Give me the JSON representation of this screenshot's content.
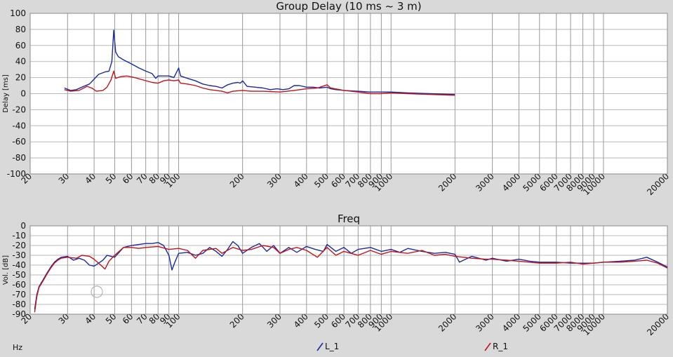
{
  "chart_data": [
    {
      "type": "line",
      "title": "Group Delay (10 ms ~ 3 m)",
      "ylabel": "Delay [ms]",
      "xscale": "log",
      "xlim": [
        20,
        20000
      ],
      "ylim": [
        -100,
        100
      ],
      "xticks": [
        20,
        30,
        40,
        50,
        60,
        70,
        80,
        90,
        100,
        200,
        300,
        400,
        500,
        600,
        700,
        800,
        900,
        1000,
        2000,
        3000,
        4000,
        5000,
        6000,
        7000,
        8000,
        9000,
        10000,
        20000
      ],
      "yticks": [
        100,
        80,
        60,
        40,
        20,
        0,
        -20,
        -40,
        -60,
        -80,
        -100
      ],
      "grid": true,
      "series": [
        {
          "name": "L_1",
          "color": "#1a2aa0",
          "points": [
            [
              29,
              7
            ],
            [
              31,
              4
            ],
            [
              33,
              5
            ],
            [
              35,
              8
            ],
            [
              38,
              12
            ],
            [
              40,
              18
            ],
            [
              42,
              24
            ],
            [
              45,
              27
            ],
            [
              47,
              28
            ],
            [
              48.5,
              40
            ],
            [
              49.5,
              79
            ],
            [
              50.5,
              52
            ],
            [
              52,
              46
            ],
            [
              55,
              42
            ],
            [
              60,
              37
            ],
            [
              65,
              32
            ],
            [
              70,
              28
            ],
            [
              75,
              25
            ],
            [
              78,
              19
            ],
            [
              80,
              22
            ],
            [
              85,
              22
            ],
            [
              90,
              22
            ],
            [
              95,
              20
            ],
            [
              100,
              32
            ],
            [
              102,
              22
            ],
            [
              110,
              19
            ],
            [
              120,
              16
            ],
            [
              130,
              12
            ],
            [
              140,
              10
            ],
            [
              150,
              9
            ],
            [
              160,
              7
            ],
            [
              170,
              11
            ],
            [
              180,
              13
            ],
            [
              190,
              14
            ],
            [
              195,
              13
            ],
            [
              200,
              16
            ],
            [
              210,
              9
            ],
            [
              230,
              8
            ],
            [
              250,
              7
            ],
            [
              270,
              5
            ],
            [
              290,
              6
            ],
            [
              310,
              5
            ],
            [
              330,
              6
            ],
            [
              350,
              10
            ],
            [
              370,
              10
            ],
            [
              400,
              8
            ],
            [
              430,
              8
            ],
            [
              460,
              7
            ],
            [
              500,
              8
            ],
            [
              520,
              6
            ],
            [
              550,
              5
            ],
            [
              600,
              4
            ],
            [
              700,
              3
            ],
            [
              800,
              2
            ],
            [
              900,
              2
            ],
            [
              1000,
              2
            ],
            [
              1200,
              1
            ],
            [
              1500,
              0
            ],
            [
              2000,
              -1
            ]
          ]
        },
        {
          "name": "R_1",
          "color": "#c0141a",
          "points": [
            [
              29,
              5
            ],
            [
              31,
              3
            ],
            [
              34,
              4
            ],
            [
              37,
              9
            ],
            [
              39,
              7
            ],
            [
              41,
              3
            ],
            [
              44,
              4
            ],
            [
              46,
              8
            ],
            [
              48,
              17
            ],
            [
              49.5,
              28
            ],
            [
              50.5,
              19
            ],
            [
              53,
              21
            ],
            [
              57,
              22
            ],
            [
              62,
              20
            ],
            [
              68,
              17
            ],
            [
              75,
              14
            ],
            [
              80,
              13
            ],
            [
              85,
              16
            ],
            [
              90,
              17
            ],
            [
              95,
              16
            ],
            [
              100,
              17
            ],
            [
              102,
              13
            ],
            [
              110,
              12
            ],
            [
              120,
              10
            ],
            [
              130,
              7
            ],
            [
              140,
              5
            ],
            [
              150,
              4
            ],
            [
              160,
              3
            ],
            [
              170,
              1
            ],
            [
              180,
              3
            ],
            [
              200,
              4
            ],
            [
              220,
              3
            ],
            [
              250,
              3
            ],
            [
              300,
              2
            ],
            [
              350,
              4
            ],
            [
              400,
              6
            ],
            [
              450,
              7
            ],
            [
              500,
              11
            ],
            [
              520,
              7
            ],
            [
              600,
              4
            ],
            [
              700,
              2
            ],
            [
              800,
              0
            ],
            [
              900,
              0
            ],
            [
              1000,
              1
            ],
            [
              1200,
              0
            ],
            [
              1500,
              -1
            ],
            [
              2000,
              -2
            ]
          ]
        }
      ]
    },
    {
      "type": "line",
      "title": "Freq",
      "ylabel": "Vol. [dB]",
      "xscale": "log",
      "xlim": [
        20,
        20000
      ],
      "ylim": [
        -90,
        0
      ],
      "xticks": [
        20,
        30,
        40,
        50,
        60,
        70,
        80,
        90,
        100,
        200,
        300,
        400,
        500,
        600,
        700,
        800,
        900,
        1000,
        2000,
        3000,
        4000,
        5000,
        6000,
        7000,
        8000,
        9000,
        10000,
        20000
      ],
      "yticks": [
        0,
        -10,
        -20,
        -30,
        -40,
        -50,
        -60,
        -70,
        -80,
        -90
      ],
      "grid": true,
      "series": [
        {
          "name": "L_1",
          "color": "#1a2aa0",
          "points": [
            [
              21,
              -85
            ],
            [
              21.5,
              -70
            ],
            [
              22,
              -62
            ],
            [
              23,
              -55
            ],
            [
              24,
              -48
            ],
            [
              25,
              -42
            ],
            [
              26,
              -37
            ],
            [
              27,
              -34
            ],
            [
              28,
              -32
            ],
            [
              30,
              -31
            ],
            [
              32,
              -35
            ],
            [
              34,
              -33
            ],
            [
              36,
              -35
            ],
            [
              38,
              -40
            ],
            [
              40,
              -41
            ],
            [
              42,
              -38
            ],
            [
              44,
              -35
            ],
            [
              46,
              -30
            ],
            [
              48,
              -31
            ],
            [
              50,
              -32
            ],
            [
              55,
              -22
            ],
            [
              60,
              -20
            ],
            [
              65,
              -19
            ],
            [
              70,
              -18
            ],
            [
              75,
              -18
            ],
            [
              80,
              -17
            ],
            [
              85,
              -20
            ],
            [
              90,
              -30
            ],
            [
              93,
              -45
            ],
            [
              96,
              -37
            ],
            [
              100,
              -28
            ],
            [
              110,
              -27
            ],
            [
              120,
              -30
            ],
            [
              130,
              -28
            ],
            [
              140,
              -22
            ],
            [
              150,
              -26
            ],
            [
              160,
              -31
            ],
            [
              170,
              -24
            ],
            [
              180,
              -16
            ],
            [
              190,
              -20
            ],
            [
              200,
              -28
            ],
            [
              220,
              -22
            ],
            [
              240,
              -18
            ],
            [
              260,
              -26
            ],
            [
              280,
              -20
            ],
            [
              300,
              -28
            ],
            [
              330,
              -22
            ],
            [
              360,
              -27
            ],
            [
              400,
              -21
            ],
            [
              440,
              -24
            ],
            [
              480,
              -26
            ],
            [
              500,
              -19
            ],
            [
              550,
              -26
            ],
            [
              600,
              -22
            ],
            [
              650,
              -28
            ],
            [
              700,
              -24
            ],
            [
              800,
              -22
            ],
            [
              900,
              -26
            ],
            [
              1000,
              -24
            ],
            [
              1100,
              -27
            ],
            [
              1200,
              -23
            ],
            [
              1400,
              -26
            ],
            [
              1600,
              -28
            ],
            [
              1800,
              -27
            ],
            [
              2000,
              -29
            ],
            [
              2100,
              -37
            ],
            [
              2400,
              -31
            ],
            [
              2800,
              -35
            ],
            [
              3000,
              -33
            ],
            [
              3500,
              -36
            ],
            [
              4000,
              -34
            ],
            [
              4500,
              -36
            ],
            [
              5000,
              -37
            ],
            [
              6000,
              -37
            ],
            [
              7000,
              -38
            ],
            [
              8000,
              -38
            ],
            [
              9000,
              -38
            ],
            [
              10000,
              -37
            ],
            [
              12000,
              -36
            ],
            [
              14000,
              -35
            ],
            [
              16000,
              -32
            ],
            [
              18000,
              -37
            ],
            [
              20000,
              -42
            ]
          ]
        },
        {
          "name": "R_1",
          "color": "#c0141a",
          "points": [
            [
              21,
              -88
            ],
            [
              21.5,
              -72
            ],
            [
              22,
              -63
            ],
            [
              23,
              -56
            ],
            [
              24,
              -49
            ],
            [
              25,
              -43
            ],
            [
              26,
              -38
            ],
            [
              27,
              -35
            ],
            [
              28,
              -33
            ],
            [
              30,
              -32
            ],
            [
              33,
              -33
            ],
            [
              35,
              -30
            ],
            [
              38,
              -31
            ],
            [
              40,
              -34
            ],
            [
              43,
              -40
            ],
            [
              45,
              -44
            ],
            [
              47,
              -36
            ],
            [
              50,
              -30
            ],
            [
              55,
              -22
            ],
            [
              60,
              -22
            ],
            [
              65,
              -23
            ],
            [
              70,
              -22
            ],
            [
              80,
              -21
            ],
            [
              90,
              -24
            ],
            [
              100,
              -23
            ],
            [
              110,
              -25
            ],
            [
              120,
              -33
            ],
            [
              130,
              -25
            ],
            [
              150,
              -23
            ],
            [
              160,
              -28
            ],
            [
              180,
              -22
            ],
            [
              200,
              -25
            ],
            [
              220,
              -24
            ],
            [
              250,
              -20
            ],
            [
              280,
              -22
            ],
            [
              300,
              -28
            ],
            [
              330,
              -24
            ],
            [
              360,
              -22
            ],
            [
              400,
              -25
            ],
            [
              450,
              -32
            ],
            [
              500,
              -22
            ],
            [
              550,
              -30
            ],
            [
              600,
              -26
            ],
            [
              700,
              -30
            ],
            [
              800,
              -25
            ],
            [
              900,
              -29
            ],
            [
              1000,
              -26
            ],
            [
              1200,
              -28
            ],
            [
              1400,
              -25
            ],
            [
              1600,
              -30
            ],
            [
              1800,
              -29
            ],
            [
              2000,
              -31
            ],
            [
              2400,
              -33
            ],
            [
              2800,
              -34
            ],
            [
              3000,
              -34
            ],
            [
              3500,
              -35
            ],
            [
              4000,
              -36
            ],
            [
              5000,
              -38
            ],
            [
              6000,
              -38
            ],
            [
              7000,
              -37
            ],
            [
              8000,
              -39
            ],
            [
              9000,
              -38
            ],
            [
              10000,
              -37
            ],
            [
              12000,
              -37
            ],
            [
              14000,
              -36
            ],
            [
              16000,
              -35
            ],
            [
              18000,
              -38
            ],
            [
              20000,
              -43
            ]
          ]
        }
      ]
    }
  ],
  "legend": [
    {
      "name": "L_1",
      "color": "#1a2aa0"
    },
    {
      "name": "R_1",
      "color": "#c0141a"
    }
  ],
  "xunit": "Hz"
}
